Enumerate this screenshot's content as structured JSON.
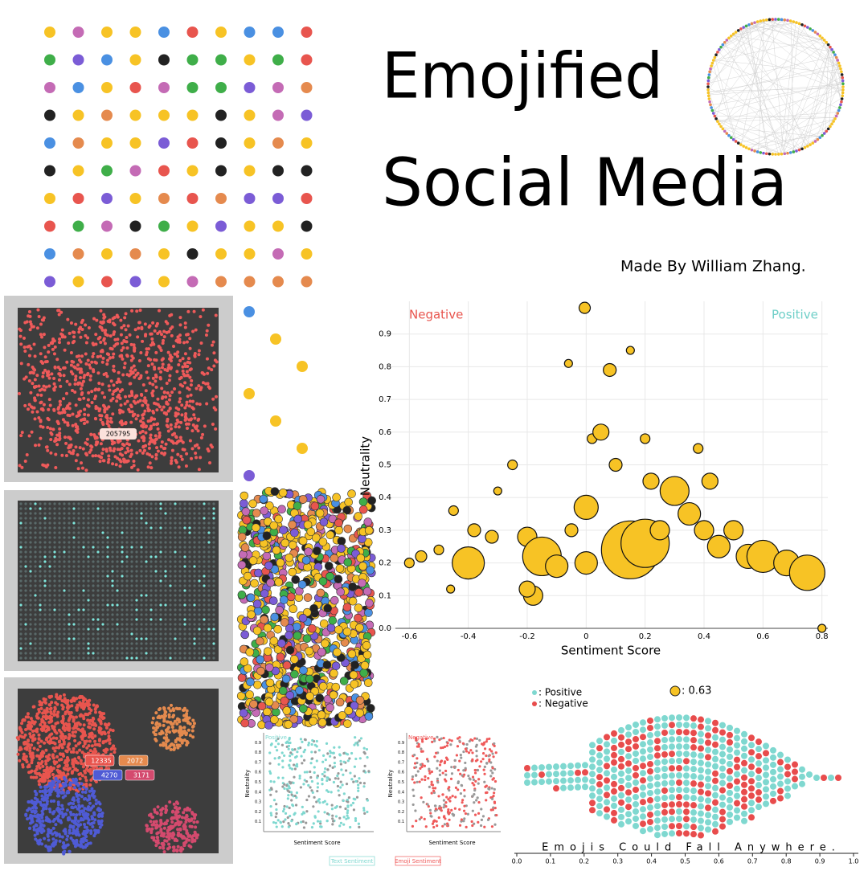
{
  "header": {
    "title_line1": "Emojified",
    "title_line2": "Social Media",
    "credit": "Made By William Zhang."
  },
  "panels": {
    "field_label": "205795",
    "clusters": [
      {
        "label": "12335",
        "color": "#e8554e"
      },
      {
        "label": "2072",
        "color": "#e58a4e"
      },
      {
        "label": "4270",
        "color": "#4f5bd5"
      },
      {
        "label": "3171",
        "color": "#d44a6e"
      }
    ]
  },
  "chart_data": [
    {
      "type": "scatter",
      "xlabel": "Sentiment Score",
      "ylabel": "Neutrality",
      "annotations": [
        "Negative",
        "Positive"
      ],
      "annotation_colors": [
        "#e8554e",
        "#6fcfc8"
      ],
      "xlim": [
        -0.68,
        0.82
      ],
      "ylim": [
        0,
        1
      ],
      "xticks": [
        -0.6,
        -0.4,
        -0.2,
        0,
        0.2,
        0.4,
        0.6,
        0.8
      ],
      "yticks": [
        {
          "value": 0,
          "label": "0.0"
        },
        0.1,
        0.2,
        0.3,
        0.4,
        0.5,
        0.6,
        0.7,
        0.8,
        0.9
      ],
      "grid": true,
      "color": "#f7c325",
      "x": [
        -0.6,
        -0.56,
        -0.5,
        -0.46,
        -0.45,
        -0.4,
        -0.38,
        -0.32,
        -0.3,
        -0.25,
        -0.2,
        -0.18,
        -0.2,
        -0.15,
        -0.1,
        -0.06,
        -0.05,
        0.0,
        0.0,
        0.02,
        0.05,
        0.08,
        0.1,
        0.15,
        0.2,
        0.22,
        0.3,
        0.25,
        0.35,
        0.4,
        0.45,
        0.5,
        0.55,
        0.6,
        0.68,
        0.75,
        0.8,
        0.2,
        0.15,
        -0.005,
        0.38,
        0.42
      ],
      "y": [
        0.2,
        0.22,
        0.24,
        0.12,
        0.36,
        0.2,
        0.3,
        0.28,
        0.42,
        0.5,
        0.28,
        0.1,
        0.12,
        0.22,
        0.19,
        0.81,
        0.3,
        0.37,
        0.2,
        0.58,
        0.6,
        0.79,
        0.5,
        0.24,
        0.26,
        0.45,
        0.42,
        0.3,
        0.35,
        0.3,
        0.25,
        0.3,
        0.22,
        0.22,
        0.2,
        0.17,
        0.0,
        0.58,
        0.85,
        0.98,
        0.55,
        0.45
      ],
      "sizes": [
        6,
        7,
        6,
        5,
        6,
        20,
        8,
        8,
        5,
        6,
        12,
        12,
        10,
        24,
        14,
        5,
        8,
        15,
        14,
        6,
        10,
        8,
        8,
        36,
        30,
        10,
        18,
        12,
        14,
        12,
        14,
        12,
        15,
        20,
        16,
        22,
        5,
        6,
        5,
        7,
        6,
        10
      ]
    },
    {
      "type": "beeswarm",
      "annotation": ": 0.63",
      "caption": "Emojis Could Fall Anywhere.",
      "series": [
        {
          "name": ": Positive",
          "color": "#7fd8d0"
        },
        {
          "name": ": Negative",
          "color": "#e84c4c"
        }
      ],
      "xlim": [
        0,
        1
      ],
      "xticks": [
        {
          "value": 0,
          "label": "0.0"
        },
        0.1,
        0.2,
        0.3,
        0.4,
        0.5,
        0.6,
        0.7,
        0.8,
        0.9,
        {
          "value": 1,
          "label": "1.0"
        }
      ]
    },
    {
      "type": "mini-scatter",
      "title": "Positive",
      "xlabel": "Sentiment Score",
      "ylabel": "Neutrality",
      "button": "Text Sentiment",
      "color": "#7fd8d0",
      "ylim": [
        0,
        1
      ],
      "yticks": [
        0.1,
        0.2,
        0.3,
        0.4,
        0.5,
        0.6,
        0.7,
        0.8,
        0.9
      ]
    },
    {
      "type": "mini-scatter",
      "title": "Negative",
      "xlabel": "Sentiment Score",
      "ylabel": "Neutrality",
      "button": "Emoji Sentiment",
      "color": "#ef5a5a",
      "ylim": [
        0,
        1
      ],
      "yticks": [
        0.1,
        0.2,
        0.3,
        0.4,
        0.5,
        0.6,
        0.7,
        0.8,
        0.9
      ]
    }
  ]
}
